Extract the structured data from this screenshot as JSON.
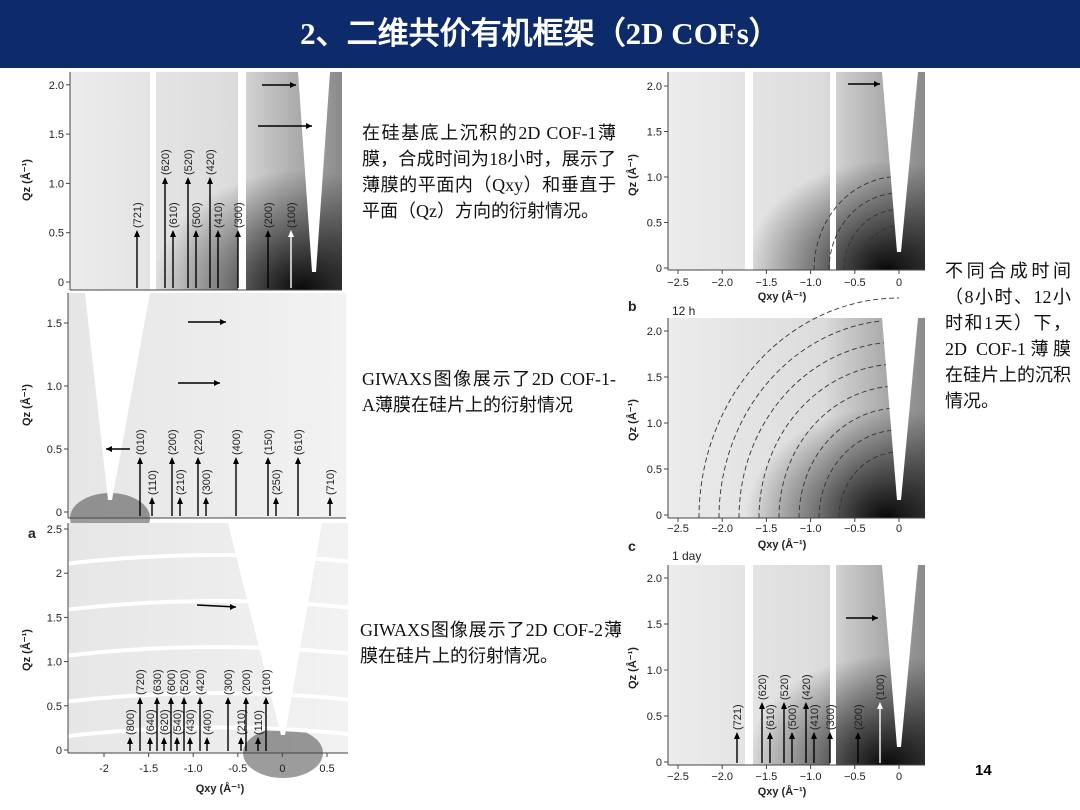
{
  "header": {
    "title": "2、二维共价有机框架（2D COFs）"
  },
  "panels": [
    {
      "y_label": "Qz (Å⁻¹)",
      "y_ticks": [
        "0",
        "0.5",
        "1.0",
        "1.5",
        "2.0"
      ],
      "peaks": [
        "(721)",
        "(620)",
        "(610)",
        "(520)",
        "(500)",
        "(420)",
        "(410)",
        "(300)",
        "(200)",
        "(100)"
      ]
    },
    {
      "y_label": "Qz (Å⁻¹)",
      "y_ticks": [
        "0",
        "0.5",
        "1.0",
        "1.5"
      ],
      "peaks": [
        "(010)",
        "(110)",
        "(200)",
        "(210)",
        "(220)",
        "(300)",
        "(400)",
        "(250)",
        "(150)",
        "(610)",
        "(710)"
      ]
    },
    {
      "letter": "a",
      "y_label": "Qz (Å⁻¹)",
      "y_ticks": [
        "0",
        "0.5",
        "1.0",
        "1.5",
        "2",
        "2.5"
      ],
      "x_label": "Qxy (Å⁻¹)",
      "x_ticks": [
        "-2",
        "-1.5",
        "-1.0",
        "-0.5",
        "0",
        "0.5"
      ],
      "peaks": [
        "(800)",
        "(720)",
        "(640)",
        "(630)",
        "(620)",
        "(600)",
        "(540)",
        "(520)",
        "(430)",
        "(420)",
        "(400)",
        "(300)",
        "(210)",
        "(200)",
        "(110)",
        "(100)"
      ]
    },
    {
      "y_label": "Qz (Å⁻¹)",
      "y_ticks": [
        "0",
        "0.5",
        "1.0",
        "1.5",
        "2.0"
      ],
      "x_label": "Qxy (Å⁻¹)",
      "x_ticks": [
        "−2.5",
        "−2.0",
        "−1.5",
        "−1.0",
        "−0.5",
        "0"
      ]
    },
    {
      "letter": "b",
      "time": "12 h",
      "y_label": "Qz (Å⁻¹)",
      "y_ticks": [
        "0",
        "0.5",
        "1.0",
        "1.5",
        "2.0"
      ],
      "x_label": "Qxy (Å⁻¹)",
      "x_ticks": [
        "−2.5",
        "−2.0",
        "−1.5",
        "−1.0",
        "−0.5",
        "0"
      ]
    },
    {
      "letter": "c",
      "time": "1 day",
      "y_label": "Qz (Å⁻¹)",
      "y_ticks": [
        "0",
        "0.5",
        "1.0",
        "1.5",
        "2.0"
      ],
      "x_label": "Qxy (Å⁻¹)",
      "x_ticks": [
        "−2.5",
        "−2.0",
        "−1.5",
        "−1.0",
        "−0.5",
        "0"
      ],
      "peaks": [
        "(721)",
        "(620)",
        "(610)",
        "(520)",
        "(500)",
        "(420)",
        "(410)",
        "(300)",
        "(200)",
        "(100)"
      ]
    }
  ],
  "texts": [
    "在硅基底上沉积的2D COF-1薄膜，合成时间为18小时，展示了薄膜的平面内（Qxy）和垂直于平面（Qz）方向的衍射情况。",
    "GIWAXS图像展示了2D COF-1-A薄膜在硅片上的衍射情况",
    "GIWAXS图像展示了2D COF-2薄膜在硅片上的衍射情况。",
    "不同合成时间（8小时、12小时和1天）下，2D COF-1薄膜在硅片上的沉积情况。"
  ],
  "page_number": "14"
}
